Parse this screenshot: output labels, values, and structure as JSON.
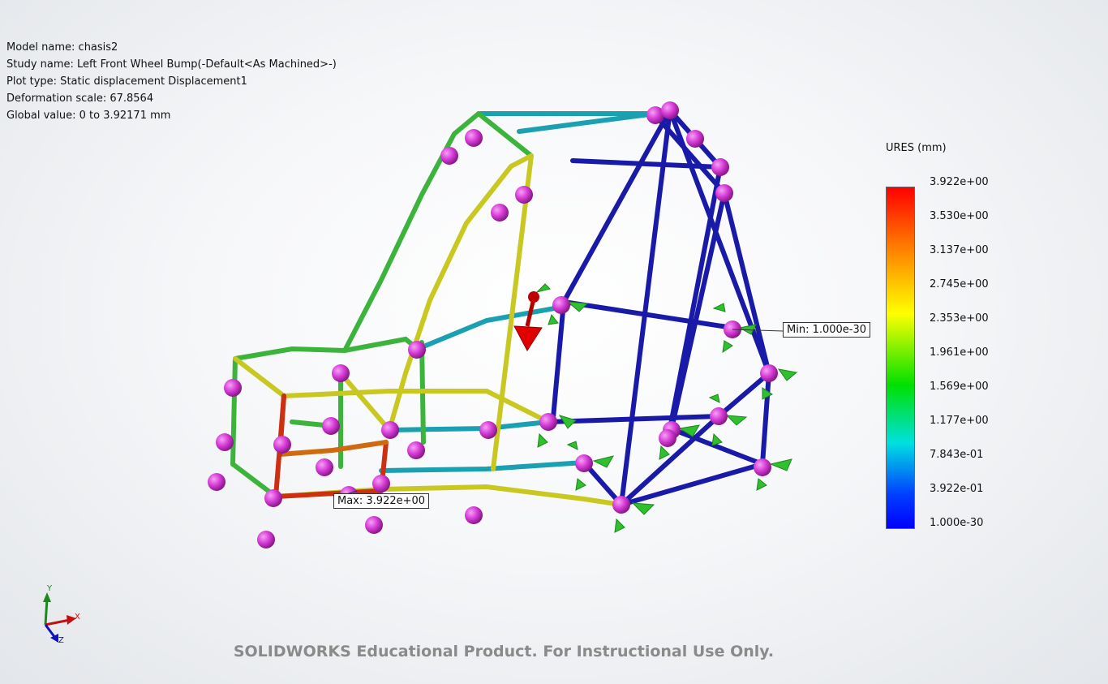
{
  "study_info": {
    "model_name": "Model name: chasis2",
    "study_name": "Study name: Left Front Wheel Bump(-Default<As Machined>-)",
    "plot_type": "Plot type: Static displacement Displacement1",
    "deformation_scale": "Deformation scale: 67.8564",
    "global_value": "Global value: 0 to 3.92171 mm"
  },
  "legend": {
    "title": "URES (mm)",
    "labels": [
      "3.922e+00",
      "3.530e+00",
      "3.137e+00",
      "2.745e+00",
      "2.353e+00",
      "1.961e+00",
      "1.569e+00",
      "1.177e+00",
      "7.843e-01",
      "3.922e-01",
      "1.000e-30"
    ]
  },
  "callouts": {
    "min": "Min: 1.000e-30",
    "max": "Max: 3.922e+00"
  },
  "triad": {
    "x": "X",
    "y": "Y",
    "z": "Z"
  },
  "colors": {
    "fixture": "#2fbf2f",
    "node": "#d63ad6",
    "load": "#d40000"
  },
  "watermark": "SOLIDWORKS Educational Product. For Instructional Use Only."
}
